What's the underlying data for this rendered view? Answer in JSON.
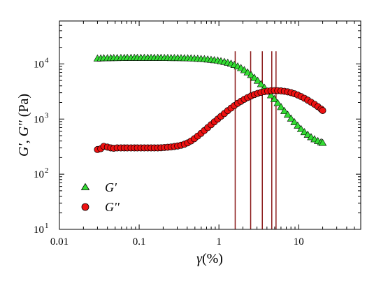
{
  "chart_data": {
    "type": "scatter",
    "xscale": "log",
    "yscale": "log",
    "xlim": [
      0.01,
      60
    ],
    "ylim": [
      10,
      60000
    ],
    "xlabel_symbol": "γ",
    "xlabel_unit": "(%)",
    "ylabel_gp": "G'",
    "ylabel_sep": ", ",
    "ylabel_gpp": "G''",
    "ylabel_unit": " (Pa)",
    "x_ticks": [
      {
        "value": 0.01,
        "label": "0.01"
      },
      {
        "value": 0.1,
        "label": "0.1"
      },
      {
        "value": 1,
        "label": "1"
      },
      {
        "value": 10,
        "label": "10"
      }
    ],
    "y_ticks": [
      {
        "value": 10,
        "base": "10",
        "exp": "1"
      },
      {
        "value": 100,
        "base": "10",
        "exp": "2"
      },
      {
        "value": 1000,
        "base": "10",
        "exp": "3"
      },
      {
        "value": 10000,
        "base": "10",
        "exp": "4"
      }
    ],
    "vertical_lines": [
      1.6,
      2.5,
      3.5,
      4.6,
      5.2
    ],
    "vertical_line_ylim": [
      10,
      17000
    ],
    "series": [
      {
        "name": "G'",
        "marker": "triangle",
        "color": "#33dd33",
        "x": [
          0.03,
          0.033,
          0.036,
          0.04,
          0.044,
          0.048,
          0.053,
          0.059,
          0.065,
          0.071,
          0.079,
          0.087,
          0.095,
          0.105,
          0.116,
          0.128,
          0.141,
          0.155,
          0.171,
          0.188,
          0.207,
          0.228,
          0.251,
          0.276,
          0.304,
          0.335,
          0.369,
          0.406,
          0.447,
          0.492,
          0.542,
          0.597,
          0.657,
          0.724,
          0.797,
          0.877,
          0.966,
          1.06,
          1.17,
          1.29,
          1.42,
          1.56,
          1.72,
          1.89,
          2.08,
          2.29,
          2.53,
          2.78,
          3.06,
          3.37,
          3.72,
          4.09,
          4.5,
          4.96,
          5.46,
          6.01,
          6.62,
          7.29,
          8.03,
          8.84,
          9.73,
          10.7,
          11.8,
          13.0,
          14.3,
          15.8,
          17.4,
          19.1,
          20.0
        ],
        "y": [
          12500,
          12600,
          12700,
          12700,
          12750,
          12800,
          12800,
          12850,
          12850,
          12900,
          12900,
          12900,
          12900,
          12900,
          12900,
          12900,
          12900,
          12900,
          12900,
          12900,
          12850,
          12850,
          12800,
          12800,
          12800,
          12750,
          12700,
          12650,
          12600,
          12500,
          12400,
          12300,
          12200,
          12050,
          11900,
          11700,
          11500,
          11200,
          10900,
          10500,
          10100,
          9600,
          9000,
          8400,
          7700,
          7000,
          6300,
          5600,
          4950,
          4300,
          3700,
          3150,
          2700,
          2300,
          1950,
          1650,
          1400,
          1200,
          1020,
          880,
          760,
          660,
          580,
          520,
          470,
          430,
          400,
          380,
          370
        ]
      },
      {
        "name": "G''",
        "marker": "circle",
        "color": "#ee1111",
        "x": [
          0.03,
          0.033,
          0.036,
          0.04,
          0.044,
          0.048,
          0.053,
          0.059,
          0.065,
          0.071,
          0.079,
          0.087,
          0.095,
          0.105,
          0.116,
          0.128,
          0.141,
          0.155,
          0.171,
          0.188,
          0.207,
          0.228,
          0.251,
          0.276,
          0.304,
          0.335,
          0.369,
          0.406,
          0.447,
          0.492,
          0.542,
          0.597,
          0.657,
          0.724,
          0.797,
          0.877,
          0.966,
          1.06,
          1.17,
          1.29,
          1.42,
          1.56,
          1.72,
          1.89,
          2.08,
          2.29,
          2.53,
          2.78,
          3.06,
          3.37,
          3.72,
          4.09,
          4.5,
          4.96,
          5.46,
          6.01,
          6.62,
          7.29,
          8.03,
          8.84,
          9.73,
          10.7,
          11.8,
          13.0,
          14.3,
          15.8,
          17.4,
          19.1,
          20.0
        ],
        "y": [
          280,
          290,
          320,
          310,
          300,
          295,
          300,
          300,
          300,
          300,
          300,
          300,
          300,
          300,
          300,
          300,
          300,
          300,
          300,
          302,
          305,
          308,
          312,
          318,
          325,
          335,
          350,
          370,
          400,
          440,
          490,
          550,
          620,
          700,
          790,
          890,
          1000,
          1120,
          1260,
          1420,
          1580,
          1750,
          1930,
          2100,
          2280,
          2450,
          2620,
          2780,
          2920,
          3040,
          3140,
          3210,
          3260,
          3280,
          3270,
          3240,
          3190,
          3110,
          3010,
          2880,
          2730,
          2560,
          2380,
          2200,
          2020,
          1850,
          1680,
          1520,
          1430
        ]
      }
    ],
    "legend": {
      "position": "bottom-left",
      "entries": [
        {
          "label": "G'",
          "marker": "triangle",
          "color": "#33dd33"
        },
        {
          "label": "G''",
          "marker": "circle",
          "color": "#ee1111"
        }
      ]
    }
  }
}
